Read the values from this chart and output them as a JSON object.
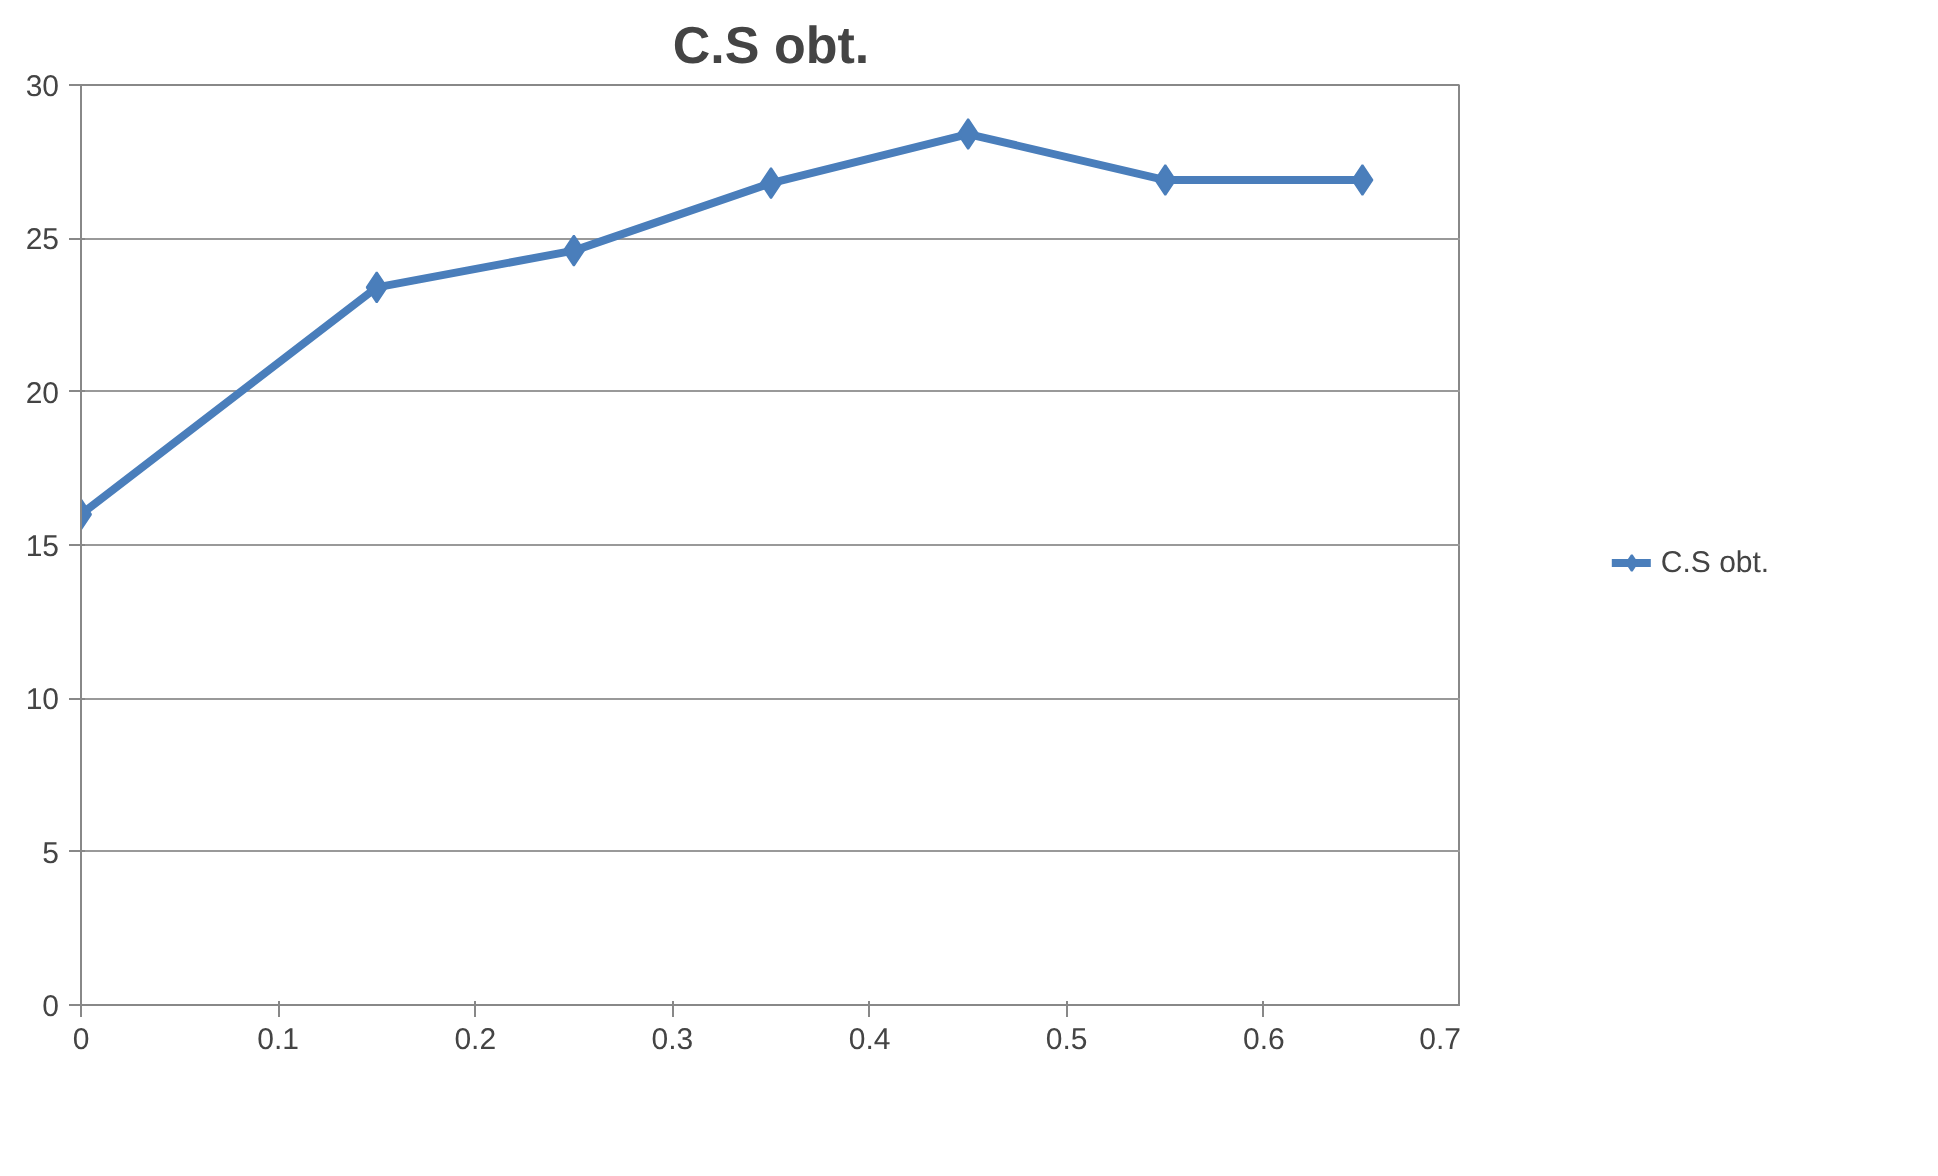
{
  "chart_data": {
    "type": "line",
    "title": "C.S obt.",
    "x": [
      0,
      0.15,
      0.25,
      0.35,
      0.45,
      0.55,
      0.65
    ],
    "series": [
      {
        "name": "C.S obt.",
        "color": "#4a7ebb",
        "values": [
          16,
          23.4,
          24.6,
          26.8,
          28.4,
          26.9,
          26.9
        ]
      }
    ],
    "xlim": [
      0,
      0.7
    ],
    "xticks": [
      0,
      0.1,
      0.2,
      0.3,
      0.4,
      0.5,
      0.6,
      0.7
    ],
    "ylim": [
      0,
      30
    ],
    "yticks": [
      0,
      5,
      10,
      15,
      20,
      25,
      30
    ],
    "grid": "y",
    "legend": "right",
    "marker": "diamond",
    "line_style": "solid"
  }
}
